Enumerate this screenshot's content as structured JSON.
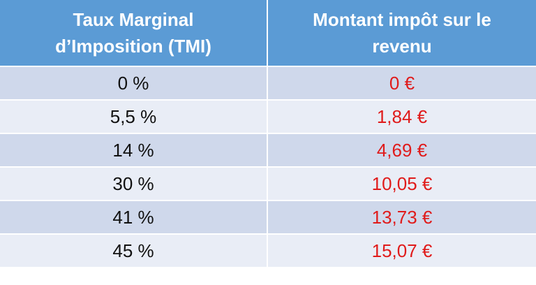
{
  "table": {
    "header": [
      [
        "Taux Marginal",
        "d’Imposition (TMI)"
      ],
      [
        "Montant impôt sur le",
        "revenu"
      ]
    ],
    "rows": [
      [
        "0 %",
        "0 €"
      ],
      [
        "5,5 %",
        "1,84 €"
      ],
      [
        "14 %",
        "4,69 €"
      ],
      [
        "30 %",
        "10,05 €"
      ],
      [
        "41 %",
        "13,73 €"
      ],
      [
        "45 %",
        "15,07 €"
      ]
    ]
  }
}
